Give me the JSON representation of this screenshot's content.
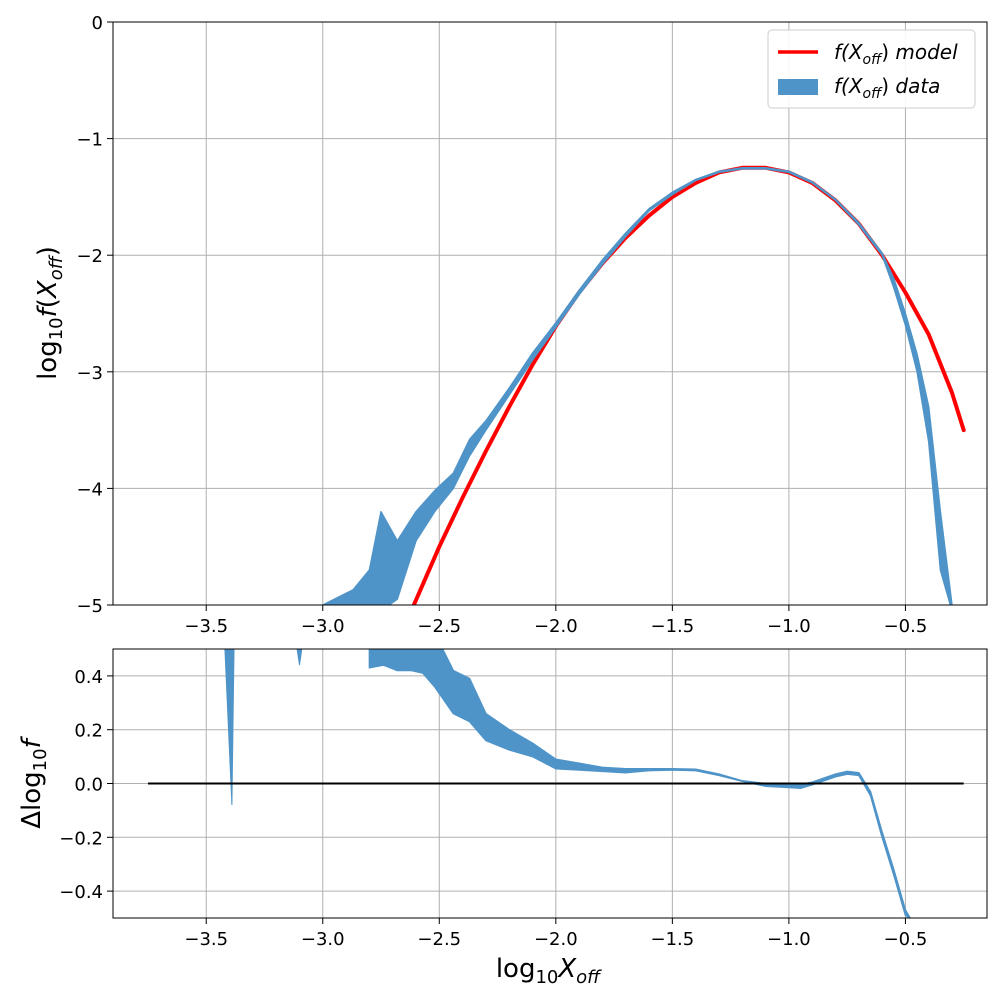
{
  "chart_data": [
    {
      "type": "line",
      "panel": "top",
      "xlabel": "log10 Xoff",
      "ylabel": "log10 f(Xoff)",
      "xlim": [
        -3.9,
        -0.15
      ],
      "ylim": [
        -5,
        0
      ],
      "xticks": [
        -3.5,
        -3.0,
        -2.5,
        -2.0,
        -1.5,
        -1.0,
        -0.5
      ],
      "xtick_labels": [
        "−3.5",
        "−3.0",
        "−2.5",
        "−2.0",
        "−1.5",
        "−1.0",
        "−0.5"
      ],
      "yticks": [
        0,
        -1,
        -2,
        -3,
        -4,
        -5
      ],
      "ytick_labels": [
        "0",
        "−1",
        "−2",
        "−3",
        "−4",
        "−5"
      ],
      "grid": true,
      "legend_position": "top-right",
      "series": [
        {
          "name": "f(Xoff) model",
          "kind": "line",
          "color": "#ff0000",
          "x": [
            -2.62,
            -2.5,
            -2.4,
            -2.3,
            -2.2,
            -2.1,
            -2.0,
            -1.9,
            -1.8,
            -1.7,
            -1.6,
            -1.5,
            -1.4,
            -1.3,
            -1.2,
            -1.1,
            -1.0,
            -0.9,
            -0.8,
            -0.7,
            -0.6,
            -0.5,
            -0.4,
            -0.3,
            -0.25
          ],
          "y": [
            -5.05,
            -4.5,
            -4.08,
            -3.68,
            -3.3,
            -2.94,
            -2.61,
            -2.32,
            -2.07,
            -1.85,
            -1.66,
            -1.5,
            -1.38,
            -1.29,
            -1.25,
            -1.25,
            -1.29,
            -1.38,
            -1.53,
            -1.73,
            -2.0,
            -2.32,
            -2.68,
            -3.18,
            -3.5
          ]
        },
        {
          "name": "f(Xoff) data",
          "kind": "band",
          "color": "#4f94c8",
          "x": [
            -3.0,
            -2.95,
            -2.87,
            -2.8,
            -2.75,
            -2.68,
            -2.6,
            -2.52,
            -2.44,
            -2.37,
            -2.3,
            -2.2,
            -2.1,
            -2.0,
            -1.9,
            -1.8,
            -1.7,
            -1.6,
            -1.5,
            -1.4,
            -1.3,
            -1.2,
            -1.1,
            -1.0,
            -0.9,
            -0.8,
            -0.7,
            -0.6,
            -0.55,
            -0.5,
            -0.45,
            -0.4,
            -0.35,
            -0.3
          ],
          "y_high": [
            -5.0,
            -4.95,
            -4.87,
            -4.7,
            -4.2,
            -4.45,
            -4.2,
            -4.02,
            -3.87,
            -3.58,
            -3.42,
            -3.14,
            -2.84,
            -2.58,
            -2.3,
            -2.04,
            -1.81,
            -1.6,
            -1.46,
            -1.35,
            -1.28,
            -1.25,
            -1.25,
            -1.28,
            -1.37,
            -1.52,
            -1.72,
            -1.98,
            -2.2,
            -2.5,
            -2.85,
            -3.3,
            -4.2,
            -5.0
          ],
          "y_low": [
            -5.05,
            -5.05,
            -5.05,
            -5.05,
            -5.05,
            -4.95,
            -4.45,
            -4.2,
            -4.0,
            -3.72,
            -3.5,
            -3.2,
            -2.9,
            -2.62,
            -2.34,
            -2.08,
            -1.84,
            -1.62,
            -1.48,
            -1.36,
            -1.29,
            -1.26,
            -1.26,
            -1.29,
            -1.38,
            -1.53,
            -1.74,
            -2.0,
            -2.28,
            -2.6,
            -3.0,
            -3.6,
            -4.7,
            -5.05
          ]
        }
      ]
    },
    {
      "type": "line",
      "panel": "bottom",
      "xlabel": "log10 Xoff",
      "ylabel": "Δlog10 f",
      "xlim": [
        -3.9,
        -0.15
      ],
      "ylim": [
        -0.5,
        0.5
      ],
      "xticks": [
        -3.5,
        -3.0,
        -2.5,
        -2.0,
        -1.5,
        -1.0,
        -0.5
      ],
      "xtick_labels": [
        "−3.5",
        "−3.0",
        "−2.5",
        "−2.0",
        "−1.5",
        "−1.0",
        "−0.5"
      ],
      "yticks": [
        0.4,
        0.2,
        0.0,
        -0.2,
        -0.4
      ],
      "ytick_labels": [
        "0.4",
        "0.2",
        "0.0",
        "−0.2",
        "−0.4"
      ],
      "grid": true,
      "reference_line": {
        "color": "#000000",
        "x": [
          -3.75,
          -0.25
        ],
        "y": [
          0,
          0
        ]
      },
      "series": [
        {
          "name": "",
          "kind": "band",
          "color": "#4f94c8",
          "x": [
            -2.8,
            -2.74,
            -2.68,
            -2.62,
            -2.57,
            -2.52,
            -2.44,
            -2.37,
            -2.3,
            -2.2,
            -2.1,
            -2.0,
            -1.9,
            -1.8,
            -1.7,
            -1.6,
            -1.5,
            -1.4,
            -1.3,
            -1.2,
            -1.1,
            -1.0,
            -0.95,
            -0.9,
            -0.85,
            -0.8,
            -0.75,
            -0.7,
            -0.65,
            -0.6,
            -0.55,
            -0.5,
            -0.48
          ],
          "y_high": [
            0.56,
            0.56,
            0.56,
            0.56,
            0.56,
            0.56,
            0.42,
            0.39,
            0.26,
            0.2,
            0.15,
            0.09,
            0.075,
            0.06,
            0.055,
            0.055,
            0.055,
            0.053,
            0.035,
            0.01,
            0.0,
            -0.005,
            -0.003,
            0.005,
            0.02,
            0.035,
            0.045,
            0.04,
            -0.03,
            -0.18,
            -0.32,
            -0.47,
            -0.5
          ],
          "y_low": [
            0.43,
            0.44,
            0.42,
            0.42,
            0.41,
            0.36,
            0.26,
            0.23,
            0.16,
            0.125,
            0.1,
            0.055,
            0.05,
            0.045,
            0.04,
            0.048,
            0.05,
            0.048,
            0.03,
            0.008,
            -0.01,
            -0.015,
            -0.018,
            -0.005,
            0.01,
            0.025,
            0.035,
            0.03,
            -0.045,
            -0.2,
            -0.34,
            -0.49,
            -0.5
          ]
        },
        {
          "name": "",
          "kind": "spike",
          "color": "#4f94c8",
          "x": [
            -3.42,
            -3.39,
            -3.38,
            -3.36
          ],
          "y": [
            0.5,
            -0.08,
            0.55,
            0.5
          ]
        },
        {
          "name": "",
          "kind": "spike",
          "color": "#4f94c8",
          "x": [
            -3.11,
            -3.1,
            -3.09
          ],
          "y": [
            0.5,
            0.44,
            0.5
          ]
        }
      ]
    }
  ]
}
